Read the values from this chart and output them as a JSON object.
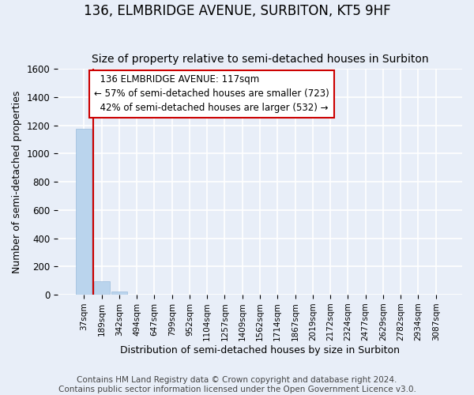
{
  "title": "136, ELMBRIDGE AVENUE, SURBITON, KT5 9HF",
  "subtitle": "Size of property relative to semi-detached houses in Surbiton",
  "xlabel": "Distribution of semi-detached houses by size in Surbiton",
  "ylabel": "Number of semi-detached properties",
  "footer1": "Contains HM Land Registry data © Crown copyright and database right 2024.",
  "footer2": "Contains public sector information licensed under the Open Government Licence v3.0.",
  "categories": [
    "37sqm",
    "189sqm",
    "342sqm",
    "494sqm",
    "647sqm",
    "799sqm",
    "952sqm",
    "1104sqm",
    "1257sqm",
    "1409sqm",
    "1562sqm",
    "1714sqm",
    "1867sqm",
    "2019sqm",
    "2172sqm",
    "2324sqm",
    "2477sqm",
    "2629sqm",
    "2782sqm",
    "2934sqm",
    "3087sqm"
  ],
  "values": [
    1175,
    95,
    20,
    2,
    1,
    0,
    0,
    0,
    0,
    0,
    0,
    0,
    0,
    0,
    0,
    0,
    0,
    0,
    0,
    0,
    0
  ],
  "bar_color": "#bad4ed",
  "bar_edge_color": "#9abcdc",
  "background_color": "#e8eef8",
  "plot_bg_color": "#e8eef8",
  "grid_color": "#ffffff",
  "ylim": [
    0,
    1600
  ],
  "annotation_text": "  136 ELMBRIDGE AVENUE: 117sqm\n← 57% of semi-detached houses are smaller (723)\n  42% of semi-detached houses are larger (532) →",
  "annotation_box_color": "#ffffff",
  "annotation_border_color": "#cc0000",
  "red_line_color": "#cc0000",
  "title_fontsize": 12,
  "subtitle_fontsize": 10,
  "tick_fontsize": 7.5,
  "ylabel_fontsize": 9,
  "xlabel_fontsize": 9,
  "annotation_fontsize": 8.5,
  "footer_fontsize": 7.5
}
